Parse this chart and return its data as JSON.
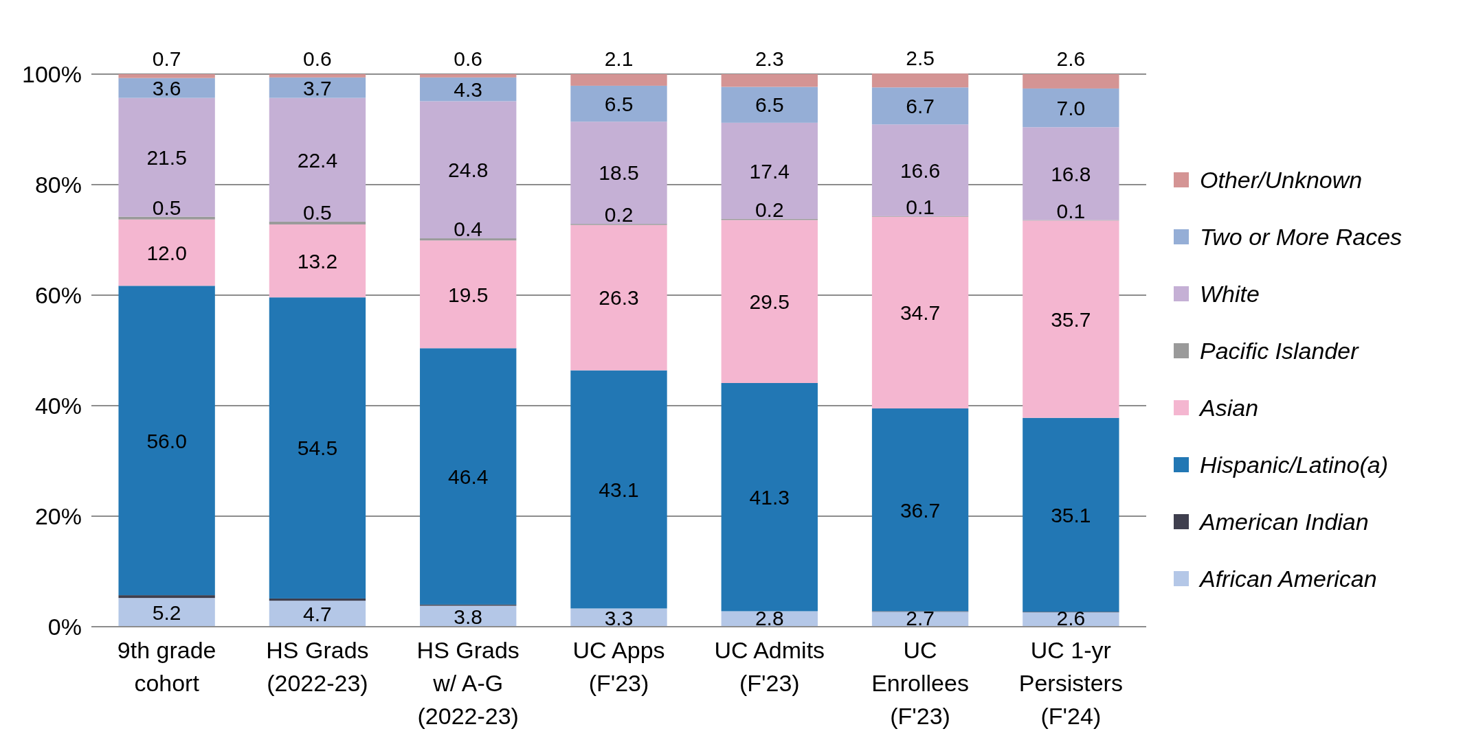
{
  "chart_data": {
    "type": "bar",
    "stacked": true,
    "categories": [
      "9th grade\ncohort",
      "HS Grads\n(2022-23)",
      "HS Grads\nw/ A-G\n(2022-23)",
      "UC Apps\n(F'23)",
      "UC Admits\n(F'23)",
      "UC\nEnrollees\n(F'23)",
      "UC 1-yr\nPersisters\n(F'24)"
    ],
    "series": [
      {
        "name": "African American",
        "color": "#b4c7e7",
        "values": [
          5.2,
          4.7,
          3.8,
          3.3,
          2.8,
          2.7,
          2.6
        ],
        "value_labels": [
          "5.2",
          "4.7",
          "3.8",
          "3.3",
          "2.8",
          "2.7",
          "2.6"
        ]
      },
      {
        "name": "American Indian",
        "color": "#3f3f4e",
        "values": [
          0.5,
          0.4,
          0.2,
          null,
          null,
          0.1,
          0.1
        ],
        "value_labels": [
          null,
          null,
          null,
          null,
          null,
          null,
          null
        ]
      },
      {
        "name": "Hispanic/Latino(a)",
        "color": "#2277b4",
        "values": [
          56.0,
          54.5,
          46.4,
          43.1,
          41.3,
          36.7,
          35.1
        ],
        "value_labels": [
          "56.0",
          "54.5",
          "46.4",
          "43.1",
          "41.3",
          "36.7",
          "35.1"
        ]
      },
      {
        "name": "Asian",
        "color": "#f4b6d0",
        "values": [
          12.0,
          13.2,
          19.5,
          26.3,
          29.5,
          34.7,
          35.7
        ],
        "value_labels": [
          "12.0",
          "13.2",
          "19.5",
          "26.3",
          "29.5",
          "34.7",
          "35.7"
        ]
      },
      {
        "name": "Pacific Islander",
        "color": "#9a9a9a",
        "values": [
          0.5,
          0.5,
          0.4,
          0.2,
          0.2,
          0.1,
          0.1
        ],
        "value_labels": [
          "0.5",
          "0.5",
          "0.4",
          "0.2",
          "0.2",
          "0.1",
          "0.1"
        ]
      },
      {
        "name": "White",
        "color": "#c5b0d5",
        "values": [
          21.5,
          22.4,
          24.8,
          18.5,
          17.4,
          16.6,
          16.8
        ],
        "value_labels": [
          "21.5",
          "22.4",
          "24.8",
          "18.5",
          "17.4",
          "16.6",
          "16.8"
        ]
      },
      {
        "name": "Two or More Races",
        "color": "#95aed6",
        "values": [
          3.6,
          3.7,
          4.3,
          6.5,
          6.5,
          6.7,
          7.0
        ],
        "value_labels": [
          "3.6",
          "3.7",
          "4.3",
          "6.5",
          "6.5",
          "6.7",
          "7.0"
        ]
      },
      {
        "name": "Other/Unknown",
        "color": "#d49494",
        "values": [
          0.7,
          0.6,
          0.6,
          2.1,
          2.3,
          2.5,
          2.6
        ],
        "value_labels": [
          "0.7",
          "0.6",
          "0.6",
          "2.1",
          "2.3",
          "2.5",
          "2.6"
        ]
      }
    ],
    "ylim": [
      0,
      100
    ],
    "yticks": [
      {
        "value": 0,
        "label": "0%"
      },
      {
        "value": 20,
        "label": "20%"
      },
      {
        "value": 40,
        "label": "40%"
      },
      {
        "value": 60,
        "label": "60%"
      },
      {
        "value": 80,
        "label": "80%"
      },
      {
        "value": 100,
        "label": "100%"
      }
    ],
    "grid": "y",
    "legend": "right"
  }
}
